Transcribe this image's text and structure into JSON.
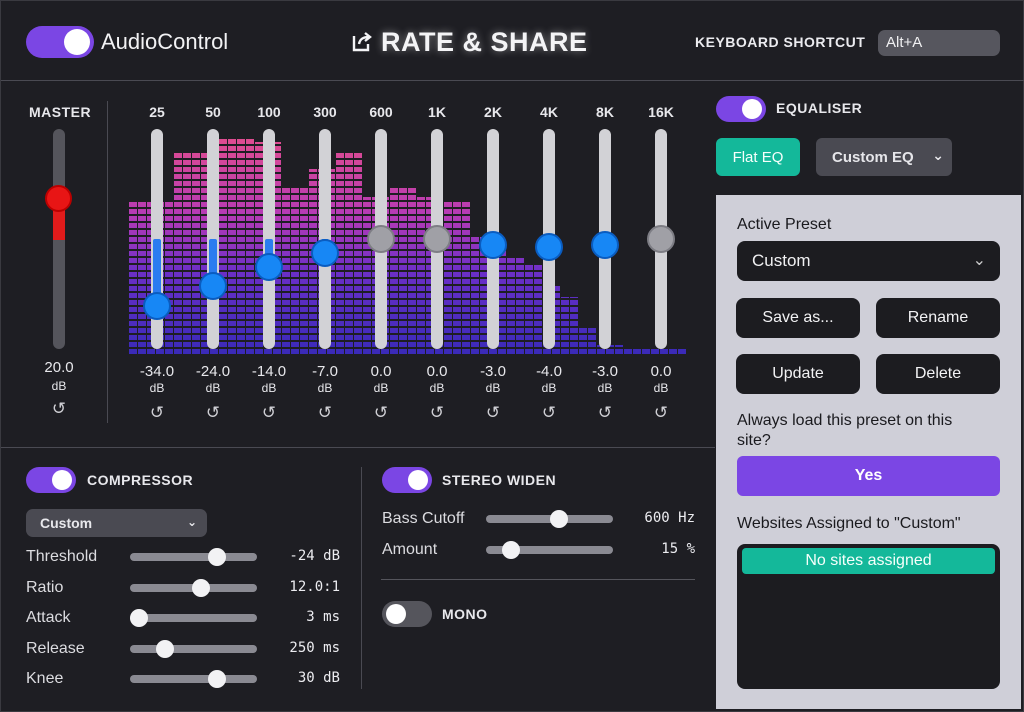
{
  "header": {
    "app_title": "AudioControl",
    "power_toggle": "on",
    "rate_share": "RATE & SHARE",
    "keyboard_shortcut_label": "KEYBOARD SHORTCUT",
    "keyboard_shortcut_value": "Alt+A",
    "share_icon": "share-icon"
  },
  "master": {
    "label": "MASTER",
    "value": "20.0",
    "unit": "dB",
    "reset_glyph": "↺",
    "level_fraction": 0.33
  },
  "equaliser": {
    "bands": [
      {
        "freq": "25",
        "value": "-34.0",
        "unit": "dB",
        "gain": -34,
        "active": true
      },
      {
        "freq": "50",
        "value": "-24.0",
        "unit": "dB",
        "gain": -24,
        "active": true
      },
      {
        "freq": "100",
        "value": "-14.0",
        "unit": "dB",
        "gain": -14,
        "active": true
      },
      {
        "freq": "300",
        "value": "-7.0",
        "unit": "dB",
        "gain": -7,
        "active": true
      },
      {
        "freq": "600",
        "value": "0.0",
        "unit": "dB",
        "gain": 0,
        "active": false
      },
      {
        "freq": "1K",
        "value": "0.0",
        "unit": "dB",
        "gain": 0,
        "active": false
      },
      {
        "freq": "2K",
        "value": "-3.0",
        "unit": "dB",
        "gain": -3,
        "active": true
      },
      {
        "freq": "4K",
        "value": "-4.0",
        "unit": "dB",
        "gain": -4,
        "active": true
      },
      {
        "freq": "8K",
        "value": "-3.0",
        "unit": "dB",
        "gain": -3,
        "active": true
      },
      {
        "freq": "16K",
        "value": "0.0",
        "unit": "dB",
        "gain": 0,
        "active": false
      }
    ],
    "reset_glyph": "↺",
    "spectrum_levels": [
      0.67,
      0.67,
      0.67,
      0.67,
      0.67,
      0.88,
      0.88,
      0.88,
      0.88,
      0.88,
      0.95,
      0.95,
      0.95,
      0.95,
      0.93,
      0.93,
      0.93,
      0.73,
      0.73,
      0.73,
      0.81,
      0.81,
      0.81,
      0.88,
      0.88,
      0.88,
      0.69,
      0.69,
      0.69,
      0.73,
      0.73,
      0.73,
      0.69,
      0.69,
      0.69,
      0.67,
      0.67,
      0.67,
      0.52,
      0.52,
      0.45,
      0.45,
      0.42,
      0.42,
      0.4,
      0.4,
      0.3,
      0.3,
      0.25,
      0.25,
      0.12,
      0.12,
      0.04,
      0.04,
      0.04,
      0.03,
      0.03,
      0.02,
      0.02,
      0.02,
      0.02,
      0.02
    ]
  },
  "right_panel": {
    "eq_toggle": "on",
    "eq_label": "EQUALISER",
    "flat_eq": "Flat EQ",
    "custom_eq": "Custom EQ",
    "active_preset_label": "Active Preset",
    "active_preset_value": "Custom",
    "buttons": {
      "save_as": "Save as...",
      "rename": "Rename",
      "update": "Update",
      "delete": "Delete"
    },
    "always_load_text": "Always load this preset on this site?",
    "yes": "Yes",
    "websites_label": "Websites Assigned to \"Custom\"",
    "no_sites": "No sites assigned"
  },
  "compressor": {
    "toggle": "on",
    "title": "COMPRESSOR",
    "preset": "Custom",
    "rows": [
      {
        "label": "Threshold",
        "value": "-24 dB",
        "position": 0.72
      },
      {
        "label": "Ratio",
        "value": "12.0:1",
        "position": 0.57
      },
      {
        "label": "Attack",
        "value": "3 ms",
        "position": 0.0
      },
      {
        "label": "Release",
        "value": "250 ms",
        "position": 0.24
      },
      {
        "label": "Knee",
        "value": "30 dB",
        "position": 0.72
      }
    ]
  },
  "stereo_widen": {
    "toggle": "on",
    "title": "STEREO WIDEN",
    "rows": [
      {
        "label": "Bass Cutoff",
        "value": "600 Hz",
        "position": 0.59
      },
      {
        "label": "Amount",
        "value": "15 %",
        "position": 0.15
      }
    ]
  },
  "mono": {
    "toggle": "off",
    "title": "MONO"
  },
  "colors": {
    "accent": "#7b46e4",
    "teal": "#14b89a",
    "eq_knob": "#1787f5",
    "master_knob": "#e81515"
  }
}
